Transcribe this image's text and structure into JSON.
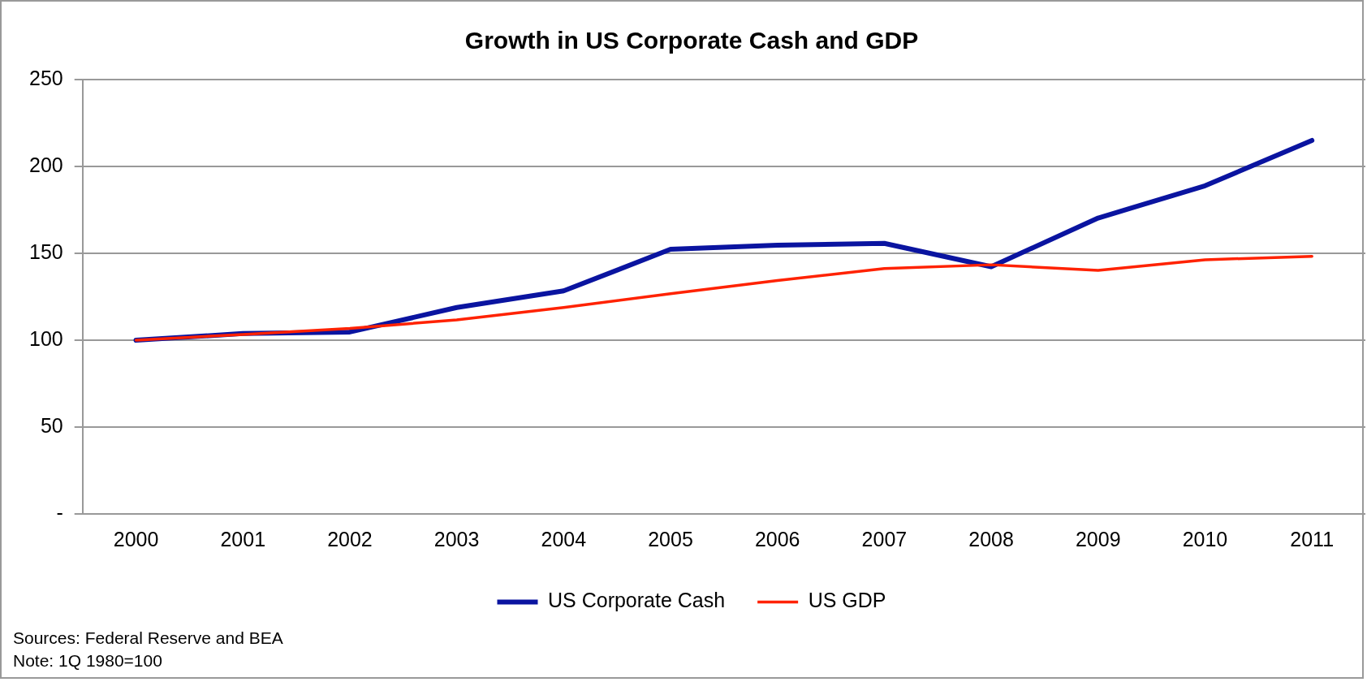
{
  "chart_data": {
    "type": "line",
    "title": "Growth in US Corporate Cash and GDP",
    "categories": [
      "2000",
      "2001",
      "2002",
      "2003",
      "2004",
      "2005",
      "2006",
      "2007",
      "2008",
      "2009",
      "2010",
      "2011"
    ],
    "series": [
      {
        "name": "US Corporate Cash",
        "color": "#0a14a0",
        "values": [
          100,
          103.8,
          104.7,
          118.8,
          128.4,
          152.3,
          154.7,
          155.7,
          142.3,
          170.3,
          188.9,
          215
        ]
      },
      {
        "name": "US GDP",
        "color": "#ff2200",
        "values": [
          100,
          103.3,
          106.8,
          111.7,
          118.8,
          126.8,
          134.3,
          141.2,
          143.4,
          140.2,
          146.3,
          148.3
        ]
      }
    ],
    "ylim": [
      0,
      250
    ],
    "yticks": [
      {
        "value": 0,
        "label": "-"
      },
      50,
      100,
      150,
      200,
      250
    ],
    "grid": "y",
    "legend": "bottom",
    "marker": "none",
    "line_style": "solid",
    "annotations": [
      "Sources: Federal Reserve and BEA",
      "Note: 1Q 1980=100"
    ]
  }
}
